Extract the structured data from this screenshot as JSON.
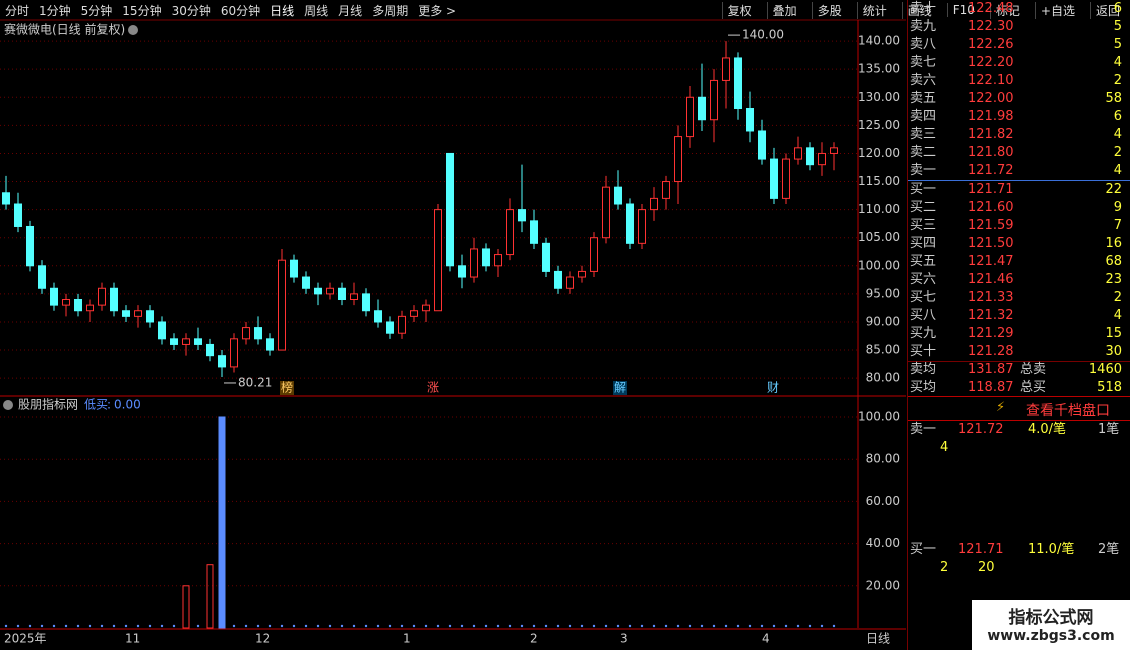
{
  "toolbar": {
    "periods": [
      "分时",
      "1分钟",
      "5分钟",
      "15分钟",
      "30分钟",
      "60分钟",
      "日线",
      "周线",
      "月线",
      "多周期",
      "更多 >"
    ],
    "active": "日线",
    "buttons": [
      "复权",
      "叠加",
      "多股",
      "统计",
      "画线",
      "F10",
      "标记",
      "+自选",
      "返回"
    ]
  },
  "chart_data": [
    {
      "type": "candlestick",
      "title": "赛微微电(日线 前复权)",
      "open": [
        113,
        111,
        107,
        100,
        96,
        93,
        94,
        92,
        93,
        96,
        92,
        91,
        92,
        90,
        87,
        86,
        87,
        86,
        84,
        82,
        87,
        89,
        87,
        85,
        101,
        98,
        96,
        95,
        96,
        94,
        95,
        92,
        90,
        88,
        91,
        92,
        92,
        120,
        100,
        98,
        103,
        100,
        102,
        110,
        108,
        104,
        99,
        96,
        98,
        99,
        105,
        114,
        111,
        104,
        110,
        112,
        115,
        123,
        130,
        126,
        133,
        137,
        128,
        124,
        119,
        112,
        119,
        121,
        118,
        120
      ],
      "high": [
        116,
        113,
        108,
        101,
        97,
        95,
        95,
        94,
        97,
        97,
        93,
        93,
        93,
        91,
        88,
        88,
        89,
        87,
        85,
        88,
        90,
        91,
        88,
        103,
        102,
        99,
        97,
        97,
        97,
        97,
        96,
        94,
        91,
        92,
        93,
        94,
        111,
        120,
        102,
        105,
        104,
        103,
        112,
        118,
        110,
        105,
        100,
        99,
        100,
        106,
        116,
        117,
        112,
        111,
        114,
        116,
        125,
        132,
        136,
        135,
        140,
        138,
        131,
        126,
        121,
        120,
        123,
        122,
        122,
        122
      ],
      "low": [
        110,
        106,
        99,
        95,
        92,
        91,
        91,
        90,
        92,
        91,
        90,
        89,
        89,
        86,
        85,
        84,
        85,
        83,
        80.21,
        81,
        86,
        86,
        84,
        85,
        97,
        95,
        93,
        94,
        93,
        93,
        91,
        89,
        87,
        87,
        90,
        90,
        92,
        99,
        96,
        97,
        99,
        98,
        101,
        106,
        103,
        98,
        95,
        95,
        97,
        98,
        104,
        110,
        103,
        103,
        108,
        110,
        111,
        121,
        124,
        122,
        128,
        126,
        122,
        118,
        111,
        111,
        118,
        117,
        116,
        117
      ],
      "close": [
        111,
        107,
        100,
        96,
        93,
        94,
        92,
        93,
        96,
        92,
        91,
        92,
        90,
        87,
        86,
        87,
        86,
        84,
        82,
        87,
        89,
        87,
        85,
        101,
        98,
        96,
        95,
        96,
        94,
        95,
        92,
        90,
        88,
        91,
        92,
        93,
        110,
        100,
        98,
        103,
        100,
        102,
        110,
        108,
        104,
        99,
        96,
        98,
        99,
        105,
        114,
        111,
        104,
        110,
        112,
        115,
        123,
        130,
        126,
        133,
        137,
        128,
        124,
        119,
        112,
        119,
        121,
        118,
        120,
        121
      ],
      "up_color": "#ff3232",
      "down_color": "#54ffff",
      "grid": true,
      "ylim": [
        77,
        143.4
      ],
      "yticks": [
        {
          "value": 80,
          "label": "80.00"
        },
        {
          "value": 85,
          "label": "85.00"
        },
        {
          "value": 90,
          "label": "90.00"
        },
        {
          "value": 95,
          "label": "95.00"
        },
        {
          "value": 100,
          "label": "100.00"
        },
        {
          "value": 105,
          "label": "105.00"
        },
        {
          "value": 110,
          "label": "110.00"
        },
        {
          "value": 115,
          "label": "115.00"
        },
        {
          "value": 120,
          "label": "120.00"
        },
        {
          "value": 125,
          "label": "125.00"
        },
        {
          "value": 130,
          "label": "130.00"
        },
        {
          "value": 135,
          "label": "135.00"
        },
        {
          "value": 140,
          "label": "140.00"
        }
      ],
      "annotations": [
        {
          "value": 140,
          "label": "140.00"
        },
        {
          "value": 80.21,
          "label": "80.21"
        }
      ],
      "events": [
        "榜",
        "涨",
        "解",
        "财"
      ]
    },
    {
      "type": "bar",
      "title": "股朋指标网",
      "series": [
        {
          "name": "低买",
          "value_label": "0.00",
          "color": "#ff3232",
          "values": [
            0,
            0,
            0,
            0,
            0,
            0,
            0,
            0,
            0,
            0,
            0,
            0,
            0,
            0,
            0,
            20,
            0,
            30,
            0,
            0,
            0,
            0,
            0,
            0,
            0,
            0,
            0,
            0,
            0,
            0,
            0,
            0,
            0,
            0,
            0,
            0,
            0,
            0,
            0,
            0,
            0,
            0,
            0,
            0,
            0,
            0,
            0,
            0,
            0,
            0,
            0,
            0,
            0,
            0,
            0,
            0,
            0,
            0,
            0,
            0,
            0,
            0,
            0,
            0,
            0,
            0,
            0,
            0,
            0,
            0
          ]
        },
        {
          "color": "#5b8cff",
          "values": [
            null,
            null,
            null,
            null,
            null,
            null,
            null,
            null,
            null,
            null,
            null,
            null,
            null,
            null,
            null,
            null,
            null,
            null,
            100,
            null,
            null,
            null,
            null,
            null,
            null,
            null,
            null,
            null,
            null,
            null,
            null,
            null,
            null,
            null,
            null,
            null,
            null,
            null,
            null,
            null,
            null,
            null,
            null,
            null,
            null,
            null,
            null,
            null,
            null,
            null,
            null,
            null,
            null,
            null,
            null,
            null,
            null,
            null,
            null,
            null,
            null,
            null,
            null,
            null,
            null,
            null,
            null,
            null,
            null,
            null
          ]
        }
      ],
      "ylim": [
        0,
        109
      ],
      "yticks": [
        {
          "value": 20,
          "label": "20.00"
        },
        {
          "value": 40,
          "label": "40.00"
        },
        {
          "value": 60,
          "label": "60.00"
        },
        {
          "value": 80,
          "label": "80.00"
        },
        {
          "value": 100,
          "label": "100.00"
        }
      ],
      "grid": true
    }
  ],
  "x_axis": {
    "labels": [
      "2025年",
      "11",
      "12",
      "1",
      "2",
      "3",
      "4"
    ],
    "period": "日线"
  },
  "order_book": {
    "asks": [
      [
        "卖十",
        "122.48",
        "6"
      ],
      [
        "卖九",
        "122.30",
        "5"
      ],
      [
        "卖八",
        "122.26",
        "5"
      ],
      [
        "卖七",
        "122.20",
        "4"
      ],
      [
        "卖六",
        "122.10",
        "2"
      ],
      [
        "卖五",
        "122.00",
        "58"
      ],
      [
        "卖四",
        "121.98",
        "6"
      ],
      [
        "卖三",
        "121.82",
        "4"
      ],
      [
        "卖二",
        "121.80",
        "2"
      ],
      [
        "卖一",
        "121.72",
        "4"
      ]
    ],
    "bids": [
      [
        "买一",
        "121.71",
        "22"
      ],
      [
        "买二",
        "121.60",
        "9"
      ],
      [
        "买三",
        "121.59",
        "7"
      ],
      [
        "买四",
        "121.50",
        "16"
      ],
      [
        "买五",
        "121.47",
        "68"
      ],
      [
        "买六",
        "121.46",
        "23"
      ],
      [
        "买七",
        "121.33",
        "2"
      ],
      [
        "买八",
        "121.32",
        "4"
      ],
      [
        "买九",
        "121.29",
        "15"
      ],
      [
        "买十",
        "121.28",
        "30"
      ]
    ],
    "summary": [
      [
        "卖均",
        "131.87",
        "总卖",
        "1460"
      ],
      [
        "买均",
        "118.87",
        "总买",
        "518"
      ]
    ],
    "depth_link": "查看千档盘口",
    "detail": [
      {
        "side": "卖一",
        "price": "121.72",
        "avg": "4.0/笔",
        "count": "1笔",
        "orders": [
          "4"
        ]
      },
      {
        "side": "买一",
        "price": "121.71",
        "avg": "11.0/笔",
        "count": "2笔",
        "orders": [
          "2",
          "20"
        ]
      }
    ]
  },
  "watermark": {
    "title": "指标公式网",
    "url": "www.zbgs3.com"
  }
}
